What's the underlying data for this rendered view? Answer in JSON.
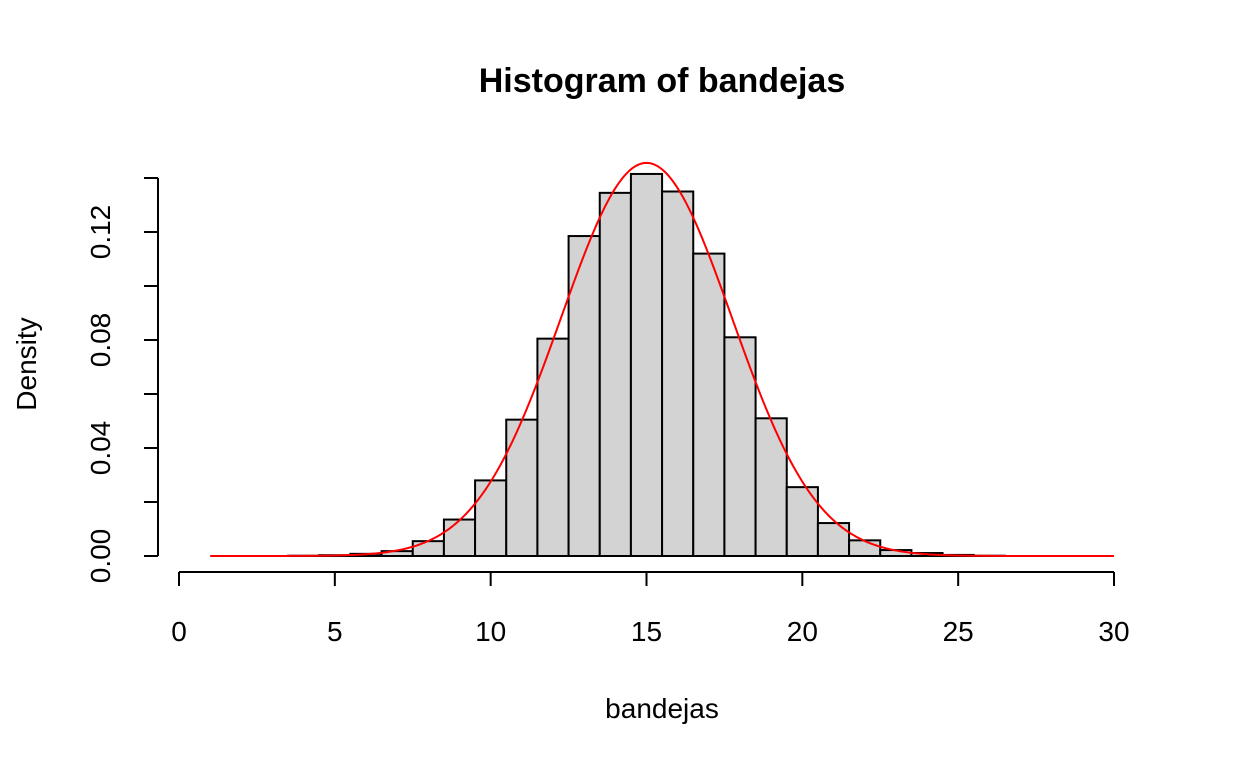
{
  "chart_data": {
    "type": "bar",
    "title": "Histogram of bandejas",
    "xlabel": "bandejas",
    "ylabel": "Density",
    "xlim": [
      0,
      30
    ],
    "ylim": [
      0,
      0.14
    ],
    "x_ticks": [
      "0",
      "5",
      "10",
      "15",
      "20",
      "25",
      "30"
    ],
    "y_ticks": [
      "0.00",
      "0.04",
      "0.08",
      "0.12"
    ],
    "y_minor_ticks": [
      0.02,
      0.06,
      0.1,
      0.14
    ],
    "bar_color": "#d3d3d3",
    "curve_color": "#ff0000",
    "grid": false,
    "bins": [
      {
        "start": 0.5,
        "end": 1.5,
        "density": 0.0
      },
      {
        "start": 1.5,
        "end": 2.5,
        "density": 0.0
      },
      {
        "start": 2.5,
        "end": 3.5,
        "density": 0.0
      },
      {
        "start": 3.5,
        "end": 4.5,
        "density": 0.0001
      },
      {
        "start": 4.5,
        "end": 5.5,
        "density": 0.0003
      },
      {
        "start": 5.5,
        "end": 6.5,
        "density": 0.0008
      },
      {
        "start": 6.5,
        "end": 7.5,
        "density": 0.0018
      },
      {
        "start": 7.5,
        "end": 8.5,
        "density": 0.0055
      },
      {
        "start": 8.5,
        "end": 9.5,
        "density": 0.0135
      },
      {
        "start": 9.5,
        "end": 10.5,
        "density": 0.028
      },
      {
        "start": 10.5,
        "end": 11.5,
        "density": 0.0505
      },
      {
        "start": 11.5,
        "end": 12.5,
        "density": 0.0805
      },
      {
        "start": 12.5,
        "end": 13.5,
        "density": 0.1185
      },
      {
        "start": 13.5,
        "end": 14.5,
        "density": 0.1345
      },
      {
        "start": 14.5,
        "end": 15.5,
        "density": 0.1415
      },
      {
        "start": 15.5,
        "end": 16.5,
        "density": 0.135
      },
      {
        "start": 16.5,
        "end": 17.5,
        "density": 0.112
      },
      {
        "start": 17.5,
        "end": 18.5,
        "density": 0.081
      },
      {
        "start": 18.5,
        "end": 19.5,
        "density": 0.051
      },
      {
        "start": 19.5,
        "end": 20.5,
        "density": 0.0255
      },
      {
        "start": 20.5,
        "end": 21.5,
        "density": 0.0122
      },
      {
        "start": 21.5,
        "end": 22.5,
        "density": 0.0058
      },
      {
        "start": 22.5,
        "end": 23.5,
        "density": 0.0022
      },
      {
        "start": 23.5,
        "end": 24.5,
        "density": 0.0011
      },
      {
        "start": 24.5,
        "end": 25.5,
        "density": 0.0004
      },
      {
        "start": 25.5,
        "end": 26.5,
        "density": 0.0001
      },
      {
        "start": 26.5,
        "end": 27.5,
        "density": 0.0
      },
      {
        "start": 27.5,
        "end": 28.5,
        "density": 0.0
      },
      {
        "start": 28.5,
        "end": 29.5,
        "density": 0.0
      },
      {
        "start": 29.5,
        "end": 30.5,
        "density": 0.0
      }
    ],
    "curve": {
      "type": "normal",
      "mean": 15,
      "sd": 2.74,
      "x_range": [
        1,
        30
      ]
    }
  }
}
